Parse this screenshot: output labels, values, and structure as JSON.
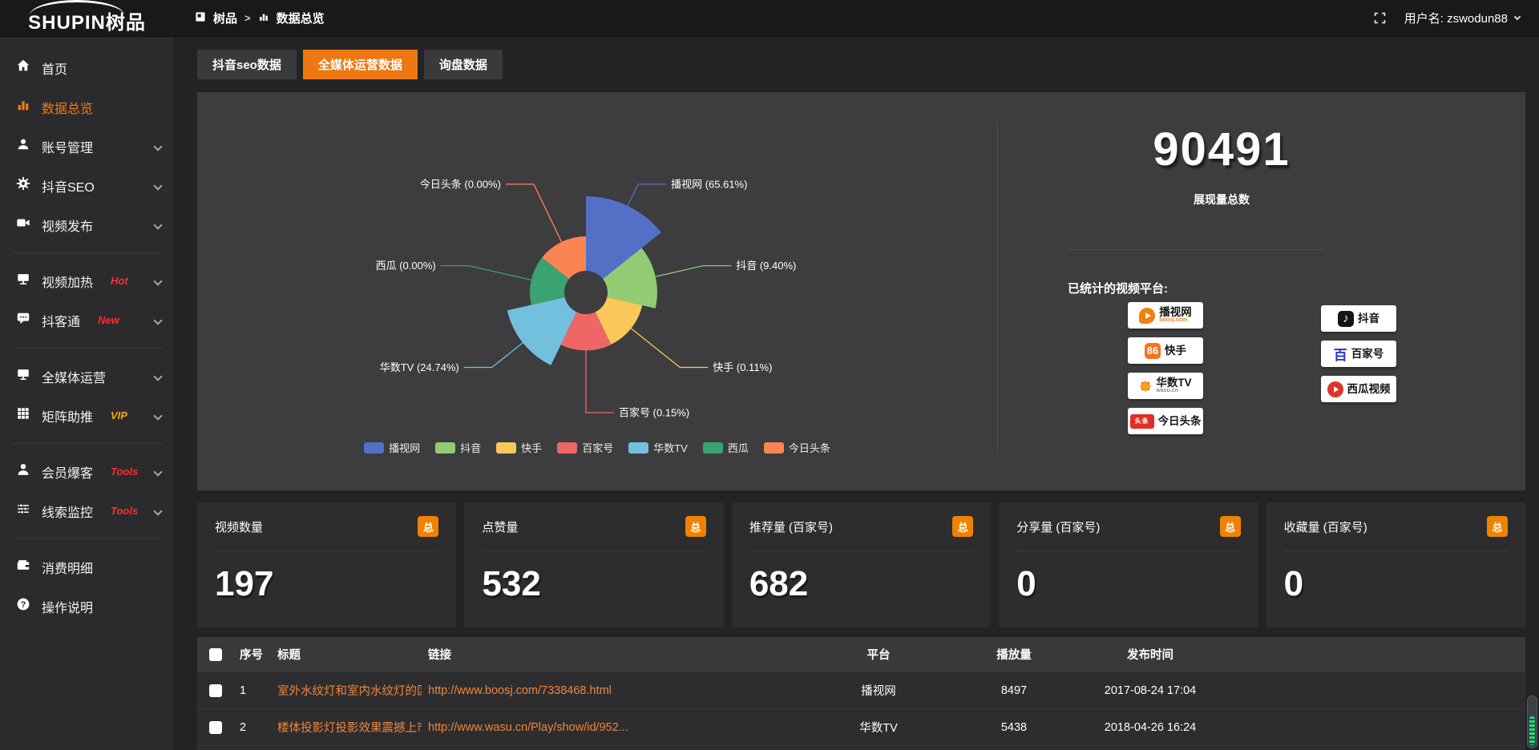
{
  "topbar": {
    "logo": "SHUPIN树品",
    "breadcrumb": {
      "root": "树品",
      "sep": ">",
      "current": "数据总览"
    },
    "username": "用户名: zswodun88"
  },
  "sidebar": {
    "items": [
      {
        "icon": "home-icon",
        "label": "首页",
        "active": false,
        "chevron": false,
        "divider_after": false
      },
      {
        "icon": "bars-icon",
        "label": "数据总览",
        "active": true,
        "chevron": false,
        "divider_after": false
      },
      {
        "icon": "user-icon",
        "label": "账号管理",
        "active": false,
        "chevron": true,
        "divider_after": false
      },
      {
        "icon": "gear-icon",
        "label": "抖音SEO",
        "active": false,
        "chevron": true,
        "divider_after": false
      },
      {
        "icon": "video-icon",
        "label": "视频发布",
        "active": false,
        "chevron": true,
        "divider_after": true
      },
      {
        "icon": "monitor-icon",
        "label": "视频加热",
        "active": false,
        "chevron": true,
        "divider_after": false,
        "badge": "Hot",
        "badge_color": "#ff2d2d"
      },
      {
        "icon": "chat-icon",
        "label": "抖客通",
        "active": false,
        "chevron": true,
        "divider_after": true,
        "badge": "New",
        "badge_color": "#ff2d2d"
      },
      {
        "icon": "screen-icon",
        "label": "全媒体运营",
        "active": false,
        "chevron": true,
        "divider_after": false
      },
      {
        "icon": "grid-icon",
        "label": "矩阵助推",
        "active": false,
        "chevron": true,
        "divider_after": true,
        "badge": "VIP",
        "badge_color": "#f5a623"
      },
      {
        "icon": "member-icon",
        "label": "会员爆客",
        "active": false,
        "chevron": true,
        "divider_after": false,
        "badge": "Tools",
        "badge_color": "#ff2d2d"
      },
      {
        "icon": "sliders-icon",
        "label": "线索监控",
        "active": false,
        "chevron": true,
        "divider_after": true,
        "badge": "Tools",
        "badge_color": "#ff2d2d"
      },
      {
        "icon": "wallet-icon",
        "label": "消费明细",
        "active": false,
        "chevron": false,
        "divider_after": false
      },
      {
        "icon": "help-icon",
        "label": "操作说明",
        "active": false,
        "chevron": false,
        "divider_after": false
      }
    ]
  },
  "tabs": [
    {
      "label": "抖音seo数据",
      "active": false
    },
    {
      "label": "全媒体运营数据",
      "active": true
    },
    {
      "label": "询盘数据",
      "active": false
    }
  ],
  "chart_data": {
    "type": "pie",
    "variant": "nightingale-rose",
    "unit": "percent",
    "items": [
      {
        "name": "播视网",
        "value": 65.61,
        "label": "播视网 (65.61%)",
        "color": "#5470c6"
      },
      {
        "name": "抖音",
        "value": 9.4,
        "label": "抖音 (9.40%)",
        "color": "#91cc75"
      },
      {
        "name": "快手",
        "value": 0.11,
        "label": "快手 (0.11%)",
        "color": "#fac858"
      },
      {
        "name": "百家号",
        "value": 0.15,
        "label": "百家号 (0.15%)",
        "color": "#ee6666"
      },
      {
        "name": "华数TV",
        "value": 24.74,
        "label": "华数TV (24.74%)",
        "color": "#73c0de"
      },
      {
        "name": "西瓜",
        "value": 0.0,
        "label": "西瓜 (0.00%)",
        "color": "#3ba272"
      },
      {
        "name": "今日头条",
        "value": 0.0,
        "label": "今日头条 (0.00%)",
        "color": "#fc8452"
      }
    ],
    "legend": [
      "播视网",
      "抖音",
      "快手",
      "百家号",
      "华数TV",
      "西瓜",
      "今日头条"
    ],
    "legend_position": "bottom"
  },
  "summary": {
    "total_value": "90491",
    "total_label": "展现量总数",
    "platforms_title": "已统计的视频平台:",
    "platforms_left": [
      {
        "name": "播视网",
        "sub": "boosj.com",
        "icon": "boosj-logo-icon"
      },
      {
        "name": "快手",
        "sub": "",
        "icon": "kuaishou-logo-icon"
      },
      {
        "name": "华数TV",
        "sub": "wasu.cn",
        "icon": "wasu-logo-icon"
      },
      {
        "name": "今日头条",
        "sub": "",
        "icon": "toutiao-logo-icon"
      }
    ],
    "platforms_right": [
      {
        "name": "抖音",
        "sub": "",
        "icon": "douyin-logo-icon"
      },
      {
        "name": "百家号",
        "sub": "",
        "icon": "baijiahao-logo-icon"
      },
      {
        "name": "西瓜视频",
        "sub": "",
        "icon": "xigua-logo-icon"
      }
    ]
  },
  "stat_cards": [
    {
      "label": "视频数量",
      "badge": "总",
      "value": "197"
    },
    {
      "label": "点赞量",
      "badge": "总",
      "value": "532"
    },
    {
      "label": "推荐量 (百家号)",
      "badge": "总",
      "value": "682"
    },
    {
      "label": "分享量 (百家号)",
      "badge": "总",
      "value": "0"
    },
    {
      "label": "收藏量 (百家号)",
      "badge": "总",
      "value": "0"
    }
  ],
  "table": {
    "headers": [
      "",
      "序号",
      "标题",
      "链接",
      "平台",
      "播放量",
      "发布时间",
      ""
    ],
    "rows": [
      {
        "index": "1",
        "title": "室外水纹灯和室内水纹灯的区别和简介",
        "link": "http://www.boosj.com/7338468.html",
        "platform": "播视网",
        "views": "8497",
        "time": "2017-08-24 17:04"
      },
      {
        "index": "2",
        "title": "楼体投影灯投影效果震撼上市",
        "link": "http://www.wasu.cn/Play/show/id/952...",
        "platform": "华数TV",
        "views": "5438",
        "time": "2018-04-26 16:24"
      }
    ]
  },
  "colors": {
    "accent": "#ee7711",
    "link": "#f0863a",
    "panel": "#3d3d3f",
    "card": "#2d2d2f"
  }
}
